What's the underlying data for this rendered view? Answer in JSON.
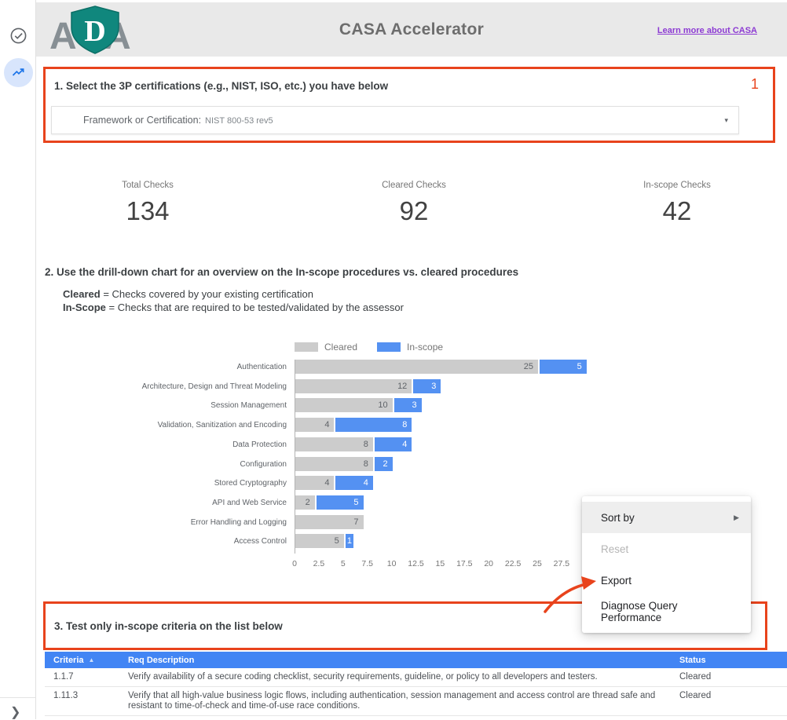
{
  "header": {
    "title": "CASA Accelerator",
    "link": "Learn more about CASA",
    "logo": {
      "left": "A",
      "middle": "D",
      "right": "A"
    }
  },
  "icons": {
    "dropdown_caret": "▾",
    "sort_ascending": "▲",
    "submenu_arrow": "▶",
    "expand_chevron": "❯"
  },
  "colors": {
    "annotation_red": "#e8431c",
    "table_header_blue": "#4285f4",
    "bar_cleared_gray": "#cccccc",
    "bar_inscope_blue": "#5491f2",
    "link_purple": "#8c3ad3",
    "shield_teal": "#10877d"
  },
  "section1": {
    "title": "1. Select the 3P certifications (e.g., NIST, ISO, etc.) you have below",
    "marker": "1",
    "dropdown_label": "Framework or Certification:",
    "dropdown_value": "NIST 800-53 rev5"
  },
  "stats": [
    {
      "label": "Total Checks",
      "value": "134"
    },
    {
      "label": "Cleared Checks",
      "value": "92"
    },
    {
      "label": "In-scope Checks",
      "value": "42"
    }
  ],
  "section2": {
    "title": "2. Use the drill-down chart for an overview on the In-scope procedures vs. cleared procedures",
    "definitions": [
      {
        "term": "Cleared",
        "text": " = Checks covered by your existing certification"
      },
      {
        "term": "In-Scope",
        "text": " = Checks that are required to be tested/validated by the assessor"
      }
    ]
  },
  "chart_data": {
    "type": "bar",
    "orientation": "horizontal",
    "stacked": true,
    "categories": [
      "Authentication",
      "Architecture, Design and Threat Modeling",
      "Session Management",
      "Validation, Sanitization and Encoding",
      "Data Protection",
      "Configuration",
      "Stored Cryptography",
      "API and Web Service",
      "Error Handling and Logging",
      "Access Control"
    ],
    "series": [
      {
        "name": "Cleared",
        "color": "#cccccc",
        "values": [
          25,
          12,
          10,
          4,
          8,
          8,
          4,
          2,
          7,
          5
        ]
      },
      {
        "name": "In-scope",
        "color": "#5491f2",
        "values": [
          5,
          3,
          3,
          8,
          4,
          2,
          4,
          5,
          0,
          1
        ]
      }
    ],
    "x_ticks": [
      0,
      2.5,
      5,
      7.5,
      10,
      12.5,
      15,
      17.5,
      20,
      22.5,
      25,
      27.5
    ],
    "xlim": [
      0,
      30
    ],
    "legend_position": "top",
    "grid": false
  },
  "menu": {
    "items": [
      {
        "label": "Sort by",
        "submenu": true,
        "state": "highlighted"
      },
      {
        "label": "Reset",
        "submenu": false,
        "state": "disabled"
      },
      {
        "label": "Export",
        "submenu": false,
        "state": "normal"
      },
      {
        "label": "Diagnose Query Performance",
        "submenu": false,
        "state": "normal"
      }
    ]
  },
  "section3": {
    "title": "3. Test only in-scope criteria on the list below"
  },
  "table": {
    "columns": [
      "Criteria",
      "Req Description",
      "Status"
    ],
    "sort_column": "Criteria",
    "rows": [
      [
        "1.1.7",
        "Verify availability of a secure coding checklist, security requirements, guideline, or policy to all developers and testers.",
        "Cleared"
      ],
      [
        "1.11.3",
        "Verify that all high-value business logic flows, including authentication, session management and access control are thread safe and resistant to time-of-check and time-of-use race conditions.",
        "Cleared"
      ]
    ]
  }
}
